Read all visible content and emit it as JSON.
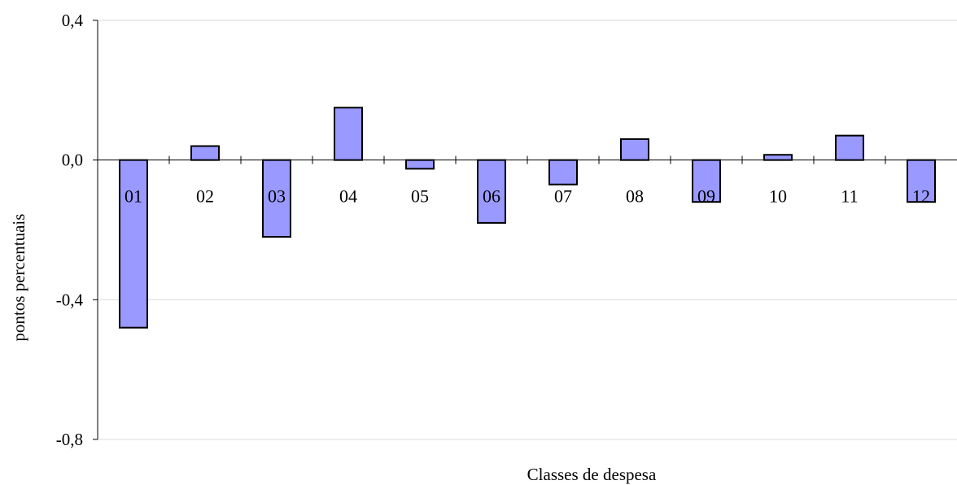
{
  "chart_data": {
    "type": "bar",
    "title": "",
    "xlabel": "Classes de despesa",
    "ylabel": "pontos percentuais",
    "categories": [
      "01",
      "02",
      "03",
      "04",
      "05",
      "06",
      "07",
      "08",
      "09",
      "10",
      "11",
      "12"
    ],
    "values": [
      -0.48,
      0.04,
      -0.22,
      0.15,
      -0.025,
      -0.18,
      -0.07,
      0.06,
      -0.12,
      0.015,
      0.07,
      -0.12
    ],
    "ylim": [
      -0.8,
      0.4
    ],
    "yticks": [
      "-0,8",
      "-0,4",
      "0,0",
      "0,4"
    ],
    "grid": true,
    "legend": "none",
    "colors": {
      "bar_fill": "#9999FF",
      "bar_stroke": "#000000",
      "grid": "#D9D9D9",
      "axis": "#000000"
    }
  }
}
